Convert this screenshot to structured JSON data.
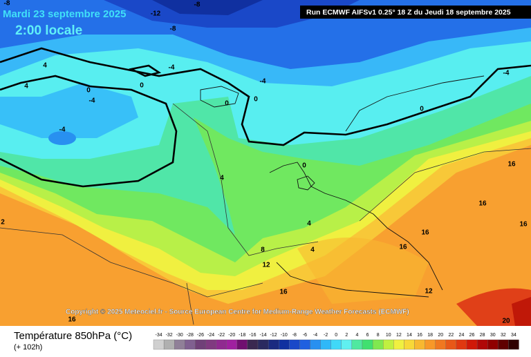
{
  "header": {
    "date": "Mardi 23 septembre 2025",
    "time": "2:00 locale",
    "run": "Run ECMWF AIFSv1 0.25° 18 Z du Jeudi 18 septembre 2025"
  },
  "copyright": "Copyright © 2025 Meteociel.fr - Source European Centre for Medium-Range Weather Forecasts (ECMWF)",
  "contour_labels": [
    "-8",
    "-8",
    "-12",
    "-8",
    "-4",
    "4",
    "4",
    "0",
    "-4",
    "-4",
    "0",
    "0",
    "0",
    "-4",
    "0",
    "0",
    "4",
    "4",
    "8",
    "4",
    "12",
    "16",
    "16",
    "16",
    "16",
    "16",
    "16",
    "12",
    "20",
    "2",
    "16",
    "-4"
  ],
  "legend": {
    "title": "Température 850hPa (°C)",
    "subtitle": "(+ 102h)",
    "items": [
      {
        "label": "-34",
        "color": "#d0d0d0"
      },
      {
        "label": "-32",
        "color": "#b0b0b0"
      },
      {
        "label": "-30",
        "color": "#908098"
      },
      {
        "label": "-28",
        "color": "#806090"
      },
      {
        "label": "-26",
        "color": "#704078"
      },
      {
        "label": "-24",
        "color": "#803a80"
      },
      {
        "label": "-22",
        "color": "#902a90"
      },
      {
        "label": "-20",
        "color": "#a020a0"
      },
      {
        "label": "-18",
        "color": "#701070"
      },
      {
        "label": "-16",
        "color": "#3a2850"
      },
      {
        "label": "-14",
        "color": "#2a2a60"
      },
      {
        "label": "-12",
        "color": "#1a2a80"
      },
      {
        "label": "-10",
        "color": "#1030a0"
      },
      {
        "label": "-8",
        "color": "#1a48c8"
      },
      {
        "label": "-6",
        "color": "#2060e0"
      },
      {
        "label": "-4",
        "color": "#2890f0"
      },
      {
        "label": "-2",
        "color": "#30b8f8"
      },
      {
        "label": "0",
        "color": "#40d8f8"
      },
      {
        "label": "2",
        "color": "#60f0f0"
      },
      {
        "label": "4",
        "color": "#50e8a0"
      },
      {
        "label": "6",
        "color": "#40e070"
      },
      {
        "label": "8",
        "color": "#80e850"
      },
      {
        "label": "10",
        "color": "#c0f040"
      },
      {
        "label": "12",
        "color": "#f0f040"
      },
      {
        "label": "14",
        "color": "#f8d838"
      },
      {
        "label": "16",
        "color": "#f8b830"
      },
      {
        "label": "18",
        "color": "#f89828"
      },
      {
        "label": "20",
        "color": "#f07820"
      },
      {
        "label": "22",
        "color": "#e85818"
      },
      {
        "label": "24",
        "color": "#e03810"
      },
      {
        "label": "26",
        "color": "#d01808"
      },
      {
        "label": "28",
        "color": "#b00808"
      },
      {
        "label": "30",
        "color": "#900000"
      },
      {
        "label": "32",
        "color": "#600000"
      },
      {
        "label": "34",
        "color": "#300000"
      }
    ]
  }
}
